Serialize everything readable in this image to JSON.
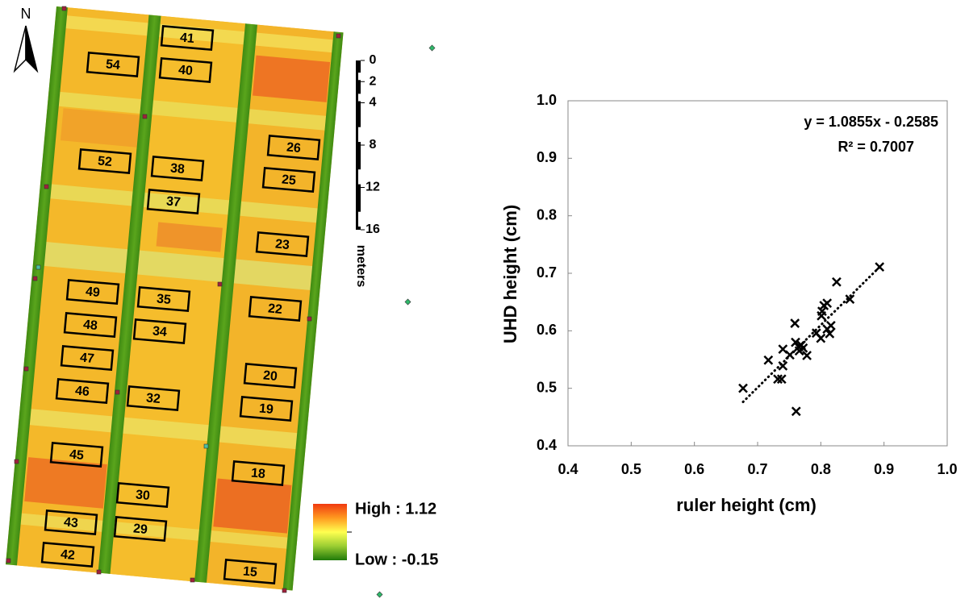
{
  "map": {
    "north": "N",
    "plots": [
      "41",
      "54",
      "40",
      "52",
      "38",
      "26",
      "37",
      "25",
      "23",
      "49",
      "35",
      "22",
      "48",
      "34",
      "47",
      "20",
      "46",
      "32",
      "19",
      "45",
      "18",
      "30",
      "43",
      "29",
      "42",
      "15"
    ],
    "scale_bar": {
      "ticks": [
        0,
        2,
        4,
        8,
        12,
        16
      ],
      "unit": "meters"
    },
    "legend": {
      "high": "High : 1.12",
      "low": "Low : -0.15"
    }
  },
  "chart_data": {
    "type": "scatter",
    "x_label": "ruler height (cm)",
    "y_label": "UHD height (cm)",
    "x": [
      0.677,
      0.717,
      0.74,
      0.732,
      0.738,
      0.74,
      0.751,
      0.76,
      0.759,
      0.761,
      0.769,
      0.772,
      0.766,
      0.765,
      0.778,
      0.793,
      0.8,
      0.802,
      0.805,
      0.81,
      0.81,
      0.816,
      0.814,
      0.801,
      0.825,
      0.846,
      0.893
    ],
    "values": [
      0.5,
      0.549,
      0.568,
      0.516,
      0.516,
      0.539,
      0.558,
      0.58,
      0.613,
      0.46,
      0.575,
      0.57,
      0.565,
      0.572,
      0.557,
      0.596,
      0.587,
      0.634,
      0.644,
      0.648,
      0.603,
      0.609,
      0.595,
      0.626,
      0.685,
      0.655,
      0.711
    ],
    "color": "#000000",
    "trendline": {
      "label": "y = 1.0855x - 0.2585",
      "slope": 1.0855,
      "intercept": -0.2585,
      "r2_label": "R² = 0.7007"
    },
    "xlim": [
      0.4,
      1.0
    ],
    "ylim": [
      0.4,
      1.0
    ],
    "xticks": [
      0.4,
      0.5,
      0.6,
      0.7,
      0.8,
      0.9,
      {
        "value": 1.0,
        "label": "1.0"
      }
    ],
    "yticks": [
      0.4,
      0.5,
      0.6,
      0.7,
      0.8,
      0.9,
      {
        "value": 1.0,
        "label": "1.0"
      }
    ],
    "grid": false
  }
}
